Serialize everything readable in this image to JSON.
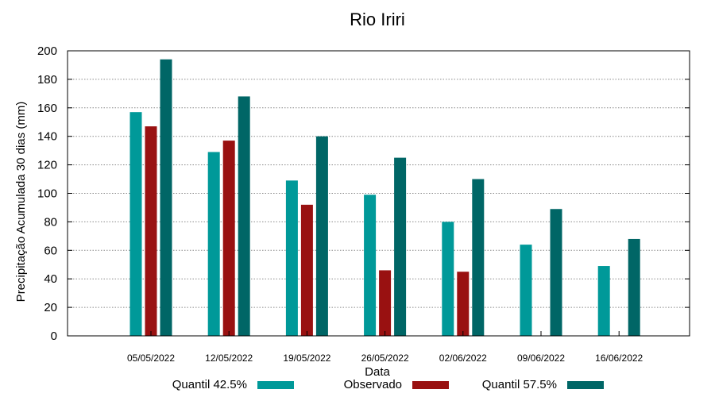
{
  "chart_data": {
    "type": "bar",
    "title": "Rio Iriri",
    "xlabel": "Data",
    "ylabel": "Precipitação Acumulada 30 dias (mm)",
    "ylim": [
      0,
      200
    ],
    "yticks": [
      0,
      20,
      40,
      60,
      80,
      100,
      120,
      140,
      160,
      180,
      200
    ],
    "grid": true,
    "legend_position": "bottom",
    "categories": [
      "05/05/2022",
      "12/05/2022",
      "19/05/2022",
      "26/05/2022",
      "02/06/2022",
      "09/06/2022",
      "16/06/2022"
    ],
    "series": [
      {
        "name": "Quantil 42.5%",
        "color": "#009999",
        "values": [
          157,
          129,
          109,
          99,
          80,
          64,
          49
        ]
      },
      {
        "name": "Observado",
        "color": "#991111",
        "values": [
          147,
          137,
          92,
          46,
          45,
          null,
          null
        ]
      },
      {
        "name": "Quantil 57.5%",
        "color": "#006666",
        "values": [
          194,
          168,
          140,
          125,
          110,
          89,
          68
        ]
      }
    ]
  }
}
